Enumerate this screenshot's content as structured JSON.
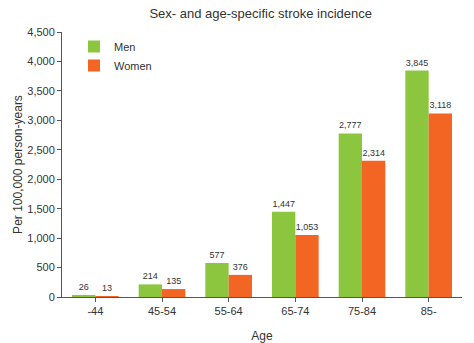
{
  "chart_data": {
    "type": "bar",
    "title": "Sex- and age-specific stroke incidence",
    "x_label": "Age",
    "y_label": "Per 100,000 person-years",
    "categories": [
      "-44",
      "45-54",
      "55-64",
      "65-74",
      "75-84",
      "85-"
    ],
    "series": [
      {
        "name": "Men",
        "color": "#8cc63f",
        "values": [
          26,
          214,
          577,
          1447,
          2777,
          3845
        ],
        "value_labels": [
          "26",
          "214",
          "577",
          "1,447",
          "2,777",
          "3,845"
        ]
      },
      {
        "name": "Women",
        "color": "#f26522",
        "values": [
          13,
          135,
          376,
          1053,
          2314,
          3118
        ],
        "value_labels": [
          "13",
          "135",
          "376",
          "1,053",
          "2,314",
          "3,118"
        ]
      }
    ],
    "ylim": [
      0,
      4500
    ],
    "yticks": [
      0,
      500,
      {
        "value": 1000,
        "label": "1,000"
      },
      {
        "value": 1500,
        "label": "1,500"
      },
      {
        "value": 2000,
        "label": "2,000"
      },
      {
        "value": 2500,
        "label": "2,500"
      },
      {
        "value": 3000,
        "label": "3,000"
      },
      {
        "value": 3500,
        "label": "3,500"
      },
      {
        "value": 4000,
        "label": "4,000"
      },
      {
        "value": 4500,
        "label": "4,500"
      }
    ],
    "grid": false,
    "legend": "upper left",
    "data_labels": true
  }
}
